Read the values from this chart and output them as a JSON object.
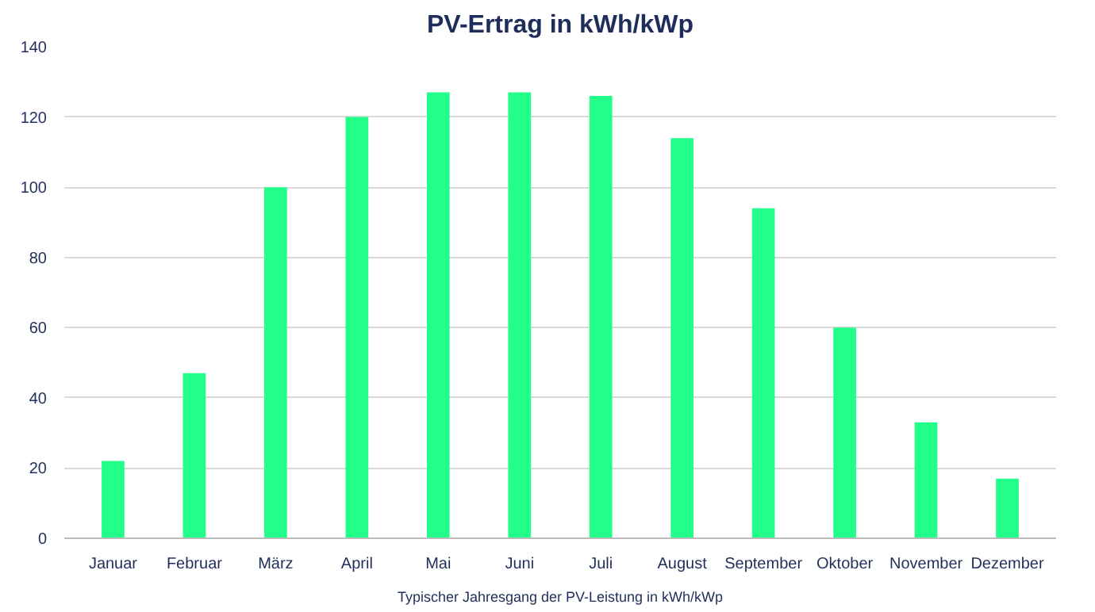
{
  "chart_data": {
    "type": "bar",
    "title": "PV-Ertrag in kWh/kWp",
    "categories": [
      "Januar",
      "Februar",
      "März",
      "April",
      "Mai",
      "Juni",
      "Juli",
      "August",
      "September",
      "Oktober",
      "November",
      "Dezember"
    ],
    "values": [
      22,
      47,
      100,
      120,
      127,
      127,
      126,
      114,
      94,
      60,
      33,
      17
    ],
    "color": "#22ff88",
    "ylim": [
      0,
      140
    ],
    "yticks": [
      0,
      20,
      40,
      60,
      80,
      100,
      120,
      140
    ],
    "grid": "y",
    "annotations": [
      "Typischer Jahresgang der PV-Leistung in kWh/kWp"
    ]
  }
}
